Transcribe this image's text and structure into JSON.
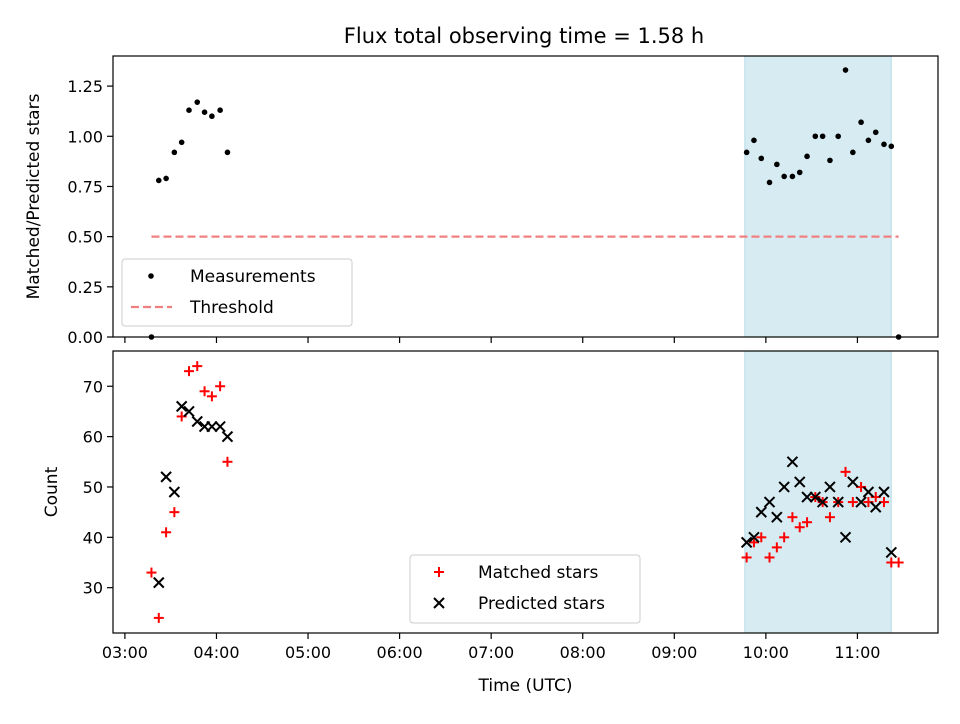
{
  "figure": {
    "title": "Flux total observing time = 1.58 h"
  },
  "chart_data": [
    {
      "type": "scatter",
      "title": "Flux total observing time = 1.58 h",
      "xlabel": "",
      "ylabel": "Matched/Predicted stars",
      "x_unit": "hours (UTC)",
      "xlim": [
        2.87,
        11.88
      ],
      "ylim": [
        0.0,
        1.4
      ],
      "yticks": [
        0.0,
        0.25,
        0.5,
        0.75,
        1.0,
        1.25
      ],
      "ytick_labels": [
        "0.00",
        "0.25",
        "0.50",
        "0.75",
        "1.00",
        "1.25"
      ],
      "grid": false,
      "legend": "lower-left",
      "shaded_span": {
        "x_start": 9.77,
        "x_end": 11.37,
        "color": "#add8e6"
      },
      "series": [
        {
          "name": "Measurements",
          "marker": "dot",
          "color": "#000000",
          "points": [
            [
              3.29,
              0.0
            ],
            [
              3.37,
              0.78
            ],
            [
              3.45,
              0.79
            ],
            [
              3.54,
              0.92
            ],
            [
              3.62,
              0.97
            ],
            [
              3.7,
              1.13
            ],
            [
              3.79,
              1.17
            ],
            [
              3.87,
              1.12
            ],
            [
              3.95,
              1.1
            ],
            [
              4.04,
              1.13
            ],
            [
              4.12,
              0.92
            ],
            [
              9.79,
              0.92
            ],
            [
              9.87,
              0.98
            ],
            [
              9.95,
              0.89
            ],
            [
              10.04,
              0.77
            ],
            [
              10.12,
              0.86
            ],
            [
              10.2,
              0.8
            ],
            [
              10.29,
              0.8
            ],
            [
              10.37,
              0.82
            ],
            [
              10.45,
              0.9
            ],
            [
              10.54,
              1.0
            ],
            [
              10.62,
              1.0
            ],
            [
              10.7,
              0.88
            ],
            [
              10.79,
              1.0
            ],
            [
              10.87,
              1.33
            ],
            [
              10.95,
              0.92
            ],
            [
              11.04,
              1.07
            ],
            [
              11.12,
              0.98
            ],
            [
              11.2,
              1.02
            ],
            [
              11.29,
              0.96
            ],
            [
              11.37,
              0.95
            ],
            [
              11.45,
              0.0
            ]
          ]
        },
        {
          "name": "Threshold",
          "type": "line",
          "style": "dashed",
          "color": "#f08080",
          "points": [
            [
              3.29,
              0.5
            ],
            [
              11.45,
              0.5
            ]
          ]
        }
      ]
    },
    {
      "type": "scatter",
      "title": "",
      "xlabel": "Time (UTC)",
      "ylabel": "Count",
      "x_unit": "hours (UTC)",
      "xlim": [
        2.87,
        11.88
      ],
      "ylim": [
        21,
        77
      ],
      "yticks": [
        30,
        40,
        50,
        60,
        70
      ],
      "ytick_labels": [
        "30",
        "40",
        "50",
        "60",
        "70"
      ],
      "xticks": [
        3,
        4,
        5,
        6,
        7,
        8,
        9,
        10,
        11
      ],
      "xtick_labels": [
        "03:00",
        "04:00",
        "05:00",
        "06:00",
        "07:00",
        "08:00",
        "09:00",
        "10:00",
        "11:00"
      ],
      "grid": false,
      "legend": "lower-center",
      "shaded_span": {
        "x_start": 9.77,
        "x_end": 11.37,
        "color": "#add8e6"
      },
      "series": [
        {
          "name": "Matched stars",
          "marker": "plus",
          "color": "#ff0000",
          "points": [
            [
              3.29,
              33
            ],
            [
              3.37,
              24
            ],
            [
              3.45,
              41
            ],
            [
              3.54,
              45
            ],
            [
              3.62,
              64
            ],
            [
              3.7,
              73
            ],
            [
              3.79,
              74
            ],
            [
              3.87,
              69
            ],
            [
              3.95,
              68
            ],
            [
              4.04,
              70
            ],
            [
              4.12,
              55
            ],
            [
              9.79,
              36
            ],
            [
              9.87,
              39
            ],
            [
              9.95,
              40
            ],
            [
              10.04,
              36
            ],
            [
              10.12,
              38
            ],
            [
              10.2,
              40
            ],
            [
              10.29,
              44
            ],
            [
              10.37,
              42
            ],
            [
              10.45,
              43
            ],
            [
              10.54,
              48
            ],
            [
              10.62,
              47
            ],
            [
              10.7,
              44
            ],
            [
              10.79,
              47
            ],
            [
              10.87,
              53
            ],
            [
              10.95,
              47
            ],
            [
              11.04,
              50
            ],
            [
              11.12,
              47
            ],
            [
              11.2,
              48
            ],
            [
              11.29,
              47
            ],
            [
              11.37,
              35
            ],
            [
              11.45,
              35
            ]
          ]
        },
        {
          "name": "Predicted stars",
          "marker": "x",
          "color": "#000000",
          "points": [
            [
              3.37,
              31
            ],
            [
              3.45,
              52
            ],
            [
              3.54,
              49
            ],
            [
              3.62,
              66
            ],
            [
              3.7,
              65
            ],
            [
              3.79,
              63
            ],
            [
              3.87,
              62
            ],
            [
              3.95,
              62
            ],
            [
              4.04,
              62
            ],
            [
              4.12,
              60
            ],
            [
              9.79,
              39
            ],
            [
              9.87,
              40
            ],
            [
              9.95,
              45
            ],
            [
              10.04,
              47
            ],
            [
              10.12,
              44
            ],
            [
              10.2,
              50
            ],
            [
              10.29,
              55
            ],
            [
              10.37,
              51
            ],
            [
              10.45,
              48
            ],
            [
              10.54,
              48
            ],
            [
              10.62,
              47
            ],
            [
              10.7,
              50
            ],
            [
              10.79,
              47
            ],
            [
              10.87,
              40
            ],
            [
              10.95,
              51
            ],
            [
              11.04,
              47
            ],
            [
              11.12,
              49
            ],
            [
              11.2,
              46
            ],
            [
              11.29,
              49
            ],
            [
              11.37,
              37
            ]
          ]
        }
      ]
    }
  ]
}
